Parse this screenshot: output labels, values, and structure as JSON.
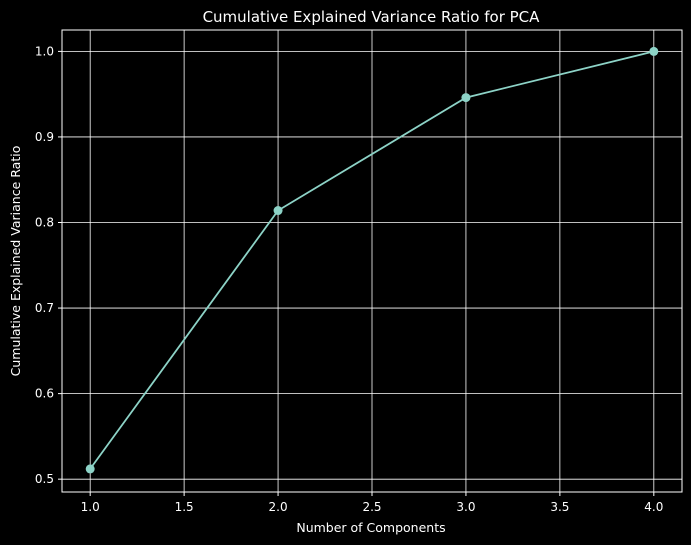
{
  "chart_data": {
    "type": "line",
    "title": "Cumulative Explained Variance Ratio for PCA",
    "xlabel": "Number of Components",
    "ylabel": "Cumulative Explained Variance Ratio",
    "x": [
      1,
      2,
      3,
      4
    ],
    "series": [
      {
        "values": [
          0.512,
          0.814,
          0.946,
          1.0
        ]
      }
    ],
    "xlim": [
      0.85,
      4.15
    ],
    "ylim": [
      0.485,
      1.025
    ],
    "xticks": [
      "1.0",
      "1.5",
      "2.0",
      "2.5",
      "3.0",
      "3.5",
      "4.0"
    ],
    "yticks": [
      "0.5",
      "0.6",
      "0.7",
      "0.8",
      "0.9",
      "1.0"
    ],
    "grid": true,
    "marker": "circle",
    "colors": {
      "background": "#000000",
      "line": "#8dd3c7",
      "grid": "#ffffff",
      "text": "#ffffff"
    }
  }
}
